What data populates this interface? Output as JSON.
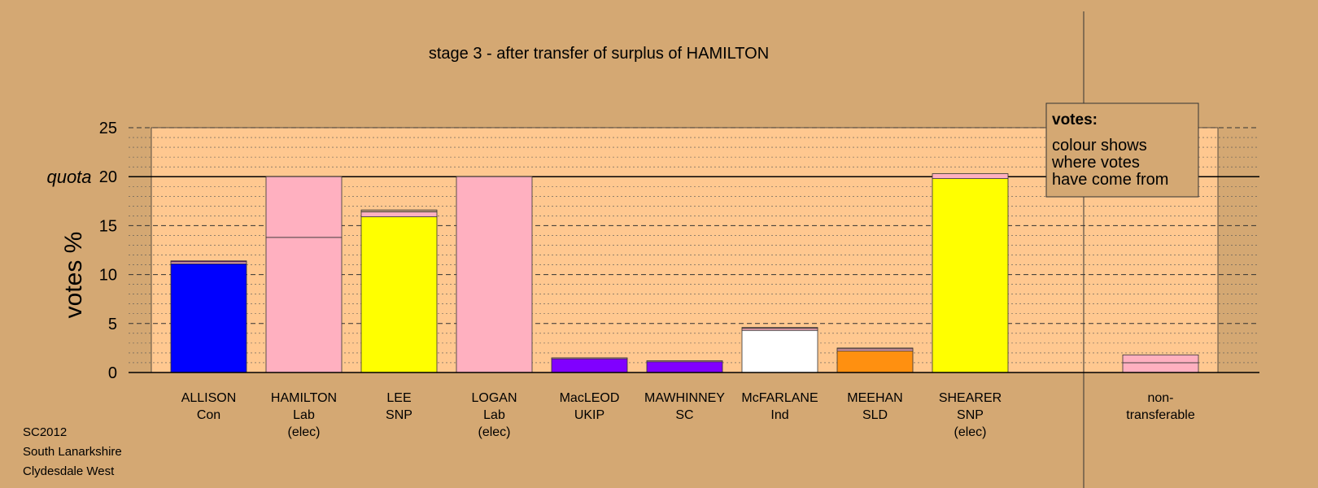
{
  "chart_data": {
    "type": "bar",
    "stacked": true,
    "title": "stage 3 - after transfer of surplus of HAMILTON",
    "ylabel": "votes %",
    "ylim": [
      0,
      25
    ],
    "yticks": [
      0,
      5,
      10,
      15,
      20,
      25
    ],
    "quota": 20,
    "quota_label": "quota",
    "grid": true,
    "legend": {
      "title": "votes:",
      "lines": [
        "colour shows",
        "where votes",
        "have come from"
      ],
      "position": "top-right"
    },
    "candidates": [
      {
        "name": "ALLISON",
        "party": "Con",
        "status": "",
        "segments": [
          {
            "value": 11.1,
            "color": "#0000ff"
          },
          {
            "value": 0.2,
            "color": "#ffb0c0"
          },
          {
            "value": 0.1,
            "color": "#8000a0"
          }
        ]
      },
      {
        "name": "HAMILTON",
        "party": "Lab",
        "status": "(elec)",
        "segments": [
          {
            "value": 13.8,
            "color": "#ffb0c0"
          },
          {
            "value": 6.2,
            "color": "#ffb0c0"
          }
        ]
      },
      {
        "name": "LEE",
        "party": "SNP",
        "status": "",
        "segments": [
          {
            "value": 15.9,
            "color": "#ffff00"
          },
          {
            "value": 0.5,
            "color": "#ffb0c0"
          },
          {
            "value": 0.2,
            "color": "#c8a080"
          }
        ]
      },
      {
        "name": "LOGAN",
        "party": "Lab",
        "status": "(elec)",
        "segments": [
          {
            "value": 20.0,
            "color": "#ffb0c0"
          }
        ]
      },
      {
        "name": "MacLEOD",
        "party": "UKIP",
        "status": "",
        "segments": [
          {
            "value": 1.4,
            "color": "#8000ff"
          },
          {
            "value": 0.1,
            "color": "#ffb0c0"
          }
        ]
      },
      {
        "name": "MAWHINNEY",
        "party": "SC",
        "status": "",
        "segments": [
          {
            "value": 1.1,
            "color": "#8000ff"
          },
          {
            "value": 0.1,
            "color": "#ffb0c0"
          }
        ]
      },
      {
        "name": "McFARLANE",
        "party": "Ind",
        "status": "",
        "segments": [
          {
            "value": 4.3,
            "color": "#ffffff"
          },
          {
            "value": 0.2,
            "color": "#ffb0c0"
          },
          {
            "value": 0.1,
            "color": "#c08080"
          }
        ]
      },
      {
        "name": "MEEHAN",
        "party": "SLD",
        "status": "",
        "segments": [
          {
            "value": 2.2,
            "color": "#ff9010"
          },
          {
            "value": 0.2,
            "color": "#ffb0c0"
          },
          {
            "value": 0.1,
            "color": "#c08080"
          }
        ]
      },
      {
        "name": "SHEARER",
        "party": "SNP",
        "status": "(elec)",
        "segments": [
          {
            "value": 19.8,
            "color": "#ffff00"
          },
          {
            "value": 0.5,
            "color": "#ffb0c0"
          }
        ]
      }
    ],
    "non_transferable": {
      "label_lines": [
        "non-",
        "transferable"
      ],
      "segments": [
        {
          "value": 1.0,
          "color": "#ffb0c0"
        },
        {
          "value": 0.8,
          "color": "#ffb0c0"
        }
      ]
    }
  },
  "footer": {
    "line1": "SC2012",
    "line2": "South Lanarkshire",
    "line3": "Clydesdale West"
  },
  "colors": {
    "background": "#d4a873",
    "plot_area": "#ffc890"
  }
}
